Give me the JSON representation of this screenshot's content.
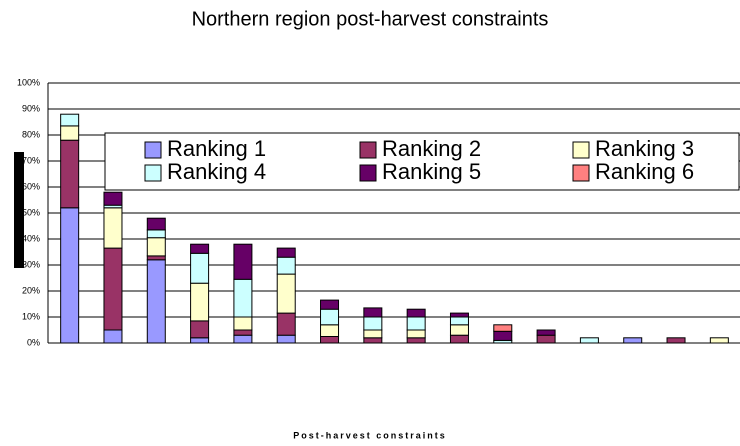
{
  "chart_data": {
    "type": "stacked_bar",
    "title": "Northern region post-harvest constraints",
    "x_label": "Post-harvest constraints",
    "categories": [
      null,
      null,
      null,
      null,
      null,
      null,
      null,
      null,
      null,
      null,
      null,
      null,
      null,
      null,
      null,
      null
    ],
    "series": [
      {
        "name": "Ranking 1",
        "color": "#9999ff",
        "values": [
          52,
          5,
          32,
          2,
          3,
          3,
          0,
          0,
          0,
          0,
          0,
          0,
          0,
          2,
          0,
          0
        ]
      },
      {
        "name": "Ranking 2",
        "color": "#993366",
        "values": [
          26,
          31.5,
          1.5,
          6.5,
          2,
          8.5,
          2.5,
          2,
          2,
          3,
          0,
          3,
          0,
          0,
          2,
          0
        ]
      },
      {
        "name": "Ranking 3",
        "color": "#ffffcc",
        "values": [
          5.5,
          15.5,
          7,
          14.5,
          5,
          15,
          4.5,
          3,
          3,
          4,
          0,
          0,
          0,
          0,
          0,
          2
        ]
      },
      {
        "name": "Ranking 4",
        "color": "#ccffff",
        "values": [
          4.5,
          1,
          3,
          11.5,
          14.5,
          6.5,
          6,
          5,
          5,
          3,
          1,
          0,
          2,
          0,
          0,
          0
        ]
      },
      {
        "name": "Ranking 5",
        "color": "#660066",
        "values": [
          0,
          5,
          4.5,
          3.5,
          13.5,
          3.5,
          3.5,
          3.5,
          3,
          1.5,
          3.5,
          2,
          0,
          0,
          0,
          0
        ]
      },
      {
        "name": "Ranking 6",
        "color": "#ff8080",
        "values": [
          0,
          0,
          0,
          0,
          0,
          0,
          0,
          0,
          0,
          0,
          2.5,
          0,
          0,
          0,
          0,
          0
        ]
      }
    ],
    "ylim": [
      0,
      100
    ],
    "yticks": [
      {
        "value": 0,
        "label": "0%"
      },
      {
        "value": 10,
        "label": "10%"
      },
      {
        "value": 20,
        "label": "20%"
      },
      {
        "value": 30,
        "label": "30%"
      },
      {
        "value": 40,
        "label": "40%"
      },
      {
        "value": 50,
        "label": "50%"
      },
      {
        "value": 60,
        "label": "60%"
      },
      {
        "value": 70,
        "label": "70%"
      },
      {
        "value": 80,
        "label": "80%"
      },
      {
        "value": 90,
        "label": "90%"
      },
      {
        "value": 100,
        "label": "100%"
      }
    ],
    "grid": true
  }
}
